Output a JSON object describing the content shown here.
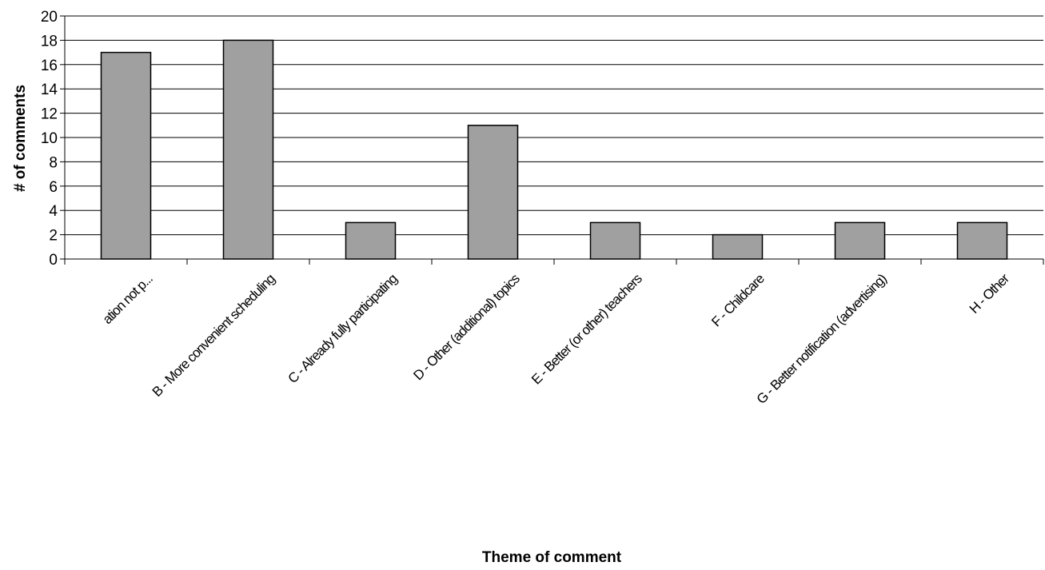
{
  "chart_data": {
    "type": "bar",
    "title": "",
    "xlabel": "Theme of comment",
    "ylabel": "# of comments",
    "ylim": [
      0,
      20
    ],
    "yticks": [
      0,
      2,
      4,
      6,
      8,
      10,
      12,
      14,
      16,
      18,
      20
    ],
    "grid": true,
    "legend": "none",
    "categories": [
      "ation not p...",
      "B - More convenient scheduling",
      "C - Already fully participating",
      "D - Other (additional) topics",
      "E - Better (or other) teachers",
      "F - Childcare",
      "G - Better notification (advertising)",
      "H - Other"
    ],
    "values": [
      17,
      18,
      3,
      11,
      3,
      2,
      3,
      3
    ],
    "colors": {
      "bar_fill": "#a0a0a0",
      "bar_stroke": "#000000",
      "grid": "#000000"
    }
  }
}
